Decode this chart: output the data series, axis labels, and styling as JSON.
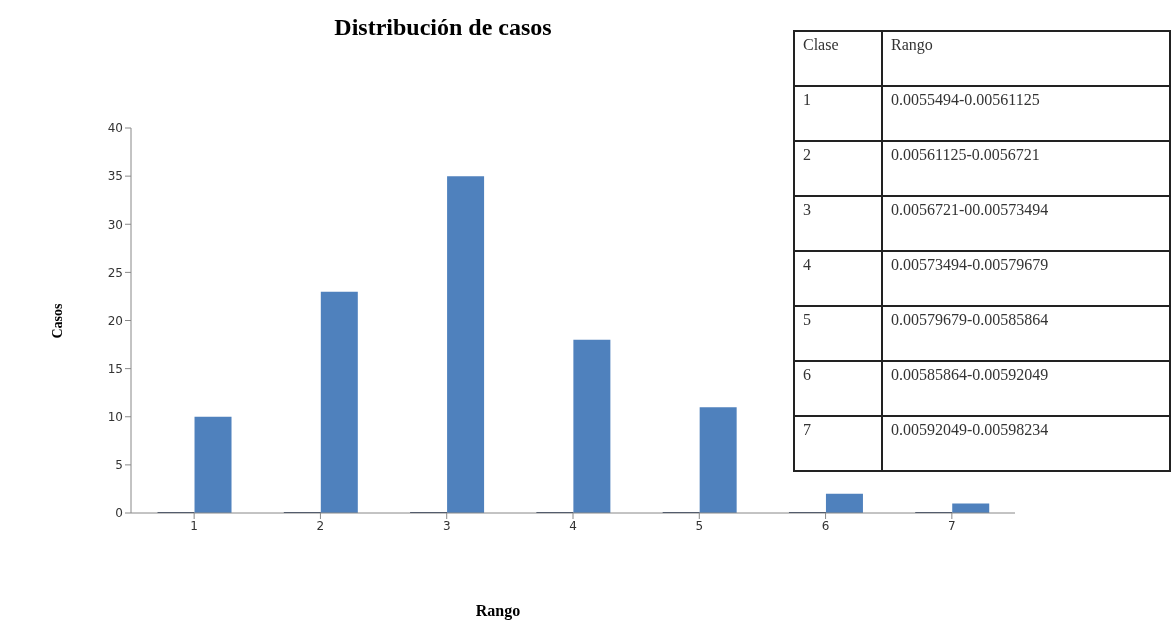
{
  "chart_data": {
    "type": "bar",
    "title": "Distribución de casos",
    "xlabel": "Rango",
    "ylabel": "Casos",
    "categories": [
      "1",
      "2",
      "3",
      "4",
      "5",
      "6",
      "7"
    ],
    "series": [
      {
        "color": "#1f3050",
        "values": [
          0,
          0,
          0,
          0,
          0,
          0,
          0
        ]
      },
      {
        "color": "#4f81bd",
        "values": [
          10,
          23,
          35,
          18,
          11,
          2,
          1
        ]
      }
    ],
    "ylim": [
      0,
      40
    ],
    "yticks": [
      0,
      5,
      10,
      15,
      20,
      25,
      30,
      35,
      40
    ],
    "grid": false,
    "legend": false,
    "annotations": [
      "Clase",
      "Rango",
      "1",
      "0.0055494-0.00561125",
      "2",
      "0.00561125-0.0056721",
      "3",
      "0.0056721-00.00573494",
      "4",
      "0.00573494-0.00579679",
      "5",
      "0.00579679-0.00585864",
      "6",
      "0.00585864-0.00592049",
      "7",
      "0.00592049-0.00598234"
    ]
  }
}
